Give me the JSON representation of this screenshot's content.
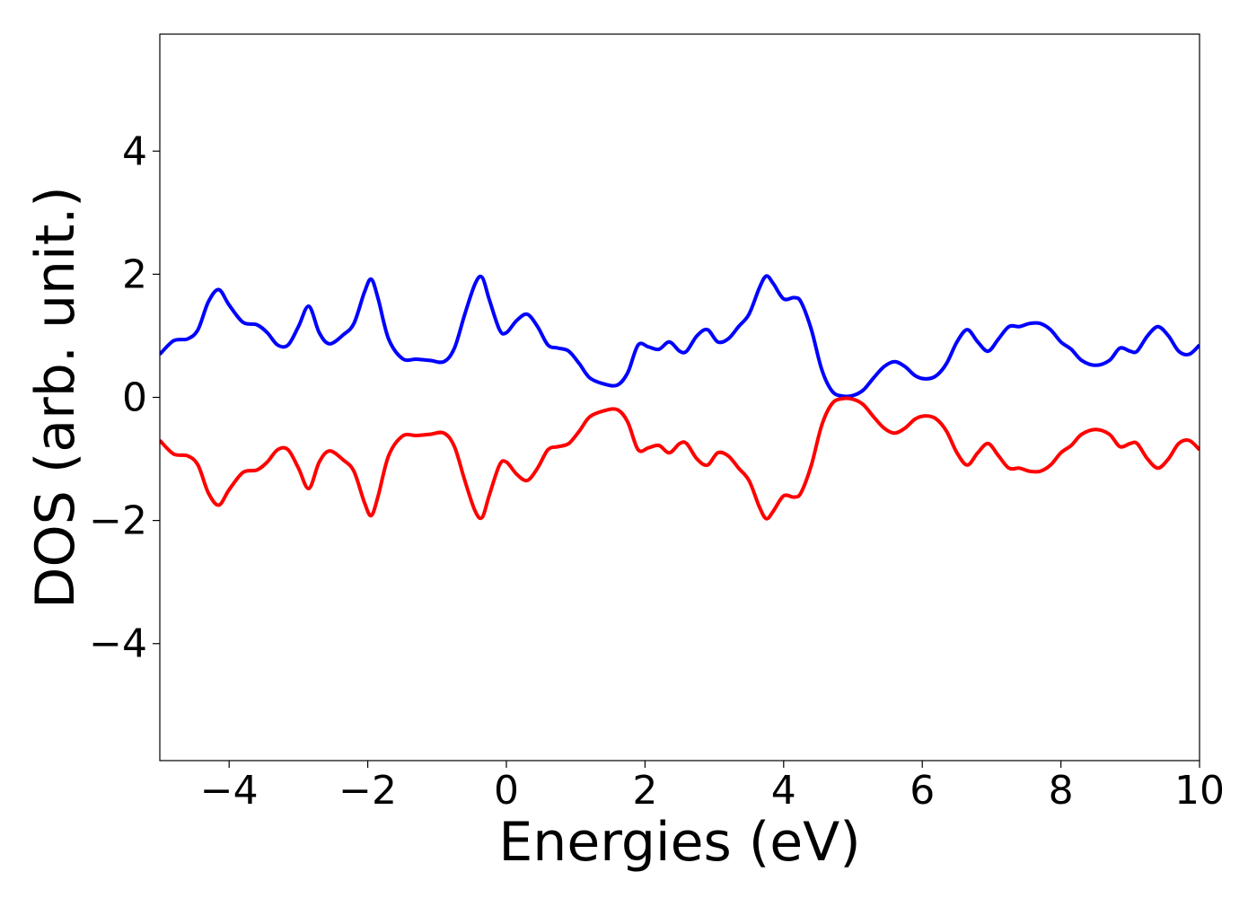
{
  "chart_data": {
    "type": "line",
    "title": "",
    "xlabel": "Energies (eV)",
    "ylabel": "DOS (arb. unit.)",
    "xlim": [
      -5,
      10
    ],
    "ylim": [
      -5.9,
      5.9
    ],
    "grid": false,
    "x_ticks": [
      -4,
      -2,
      0,
      2,
      4,
      6,
      8,
      10
    ],
    "x_tick_labels": [
      "−4",
      "−2",
      "0",
      "2",
      "4",
      "6",
      "8",
      "10"
    ],
    "y_ticks": [
      -4,
      -2,
      0,
      2,
      4
    ],
    "y_tick_labels": [
      "−4",
      "−2",
      "0",
      "2",
      "4"
    ],
    "series": [
      {
        "color": "#0000ff",
        "x": [
          -5.0,
          -4.8,
          -4.6,
          -4.45,
          -4.3,
          -4.15,
          -4.0,
          -3.8,
          -3.6,
          -3.45,
          -3.3,
          -3.15,
          -3.0,
          -2.85,
          -2.7,
          -2.55,
          -2.35,
          -2.2,
          -2.05,
          -1.95,
          -1.85,
          -1.7,
          -1.5,
          -1.3,
          -1.1,
          -0.9,
          -0.75,
          -0.6,
          -0.45,
          -0.35,
          -0.25,
          -0.1,
          0.0,
          0.15,
          0.3,
          0.45,
          0.6,
          0.75,
          0.9,
          1.05,
          1.2,
          1.4,
          1.6,
          1.75,
          1.9,
          2.05,
          2.2,
          2.35,
          2.5,
          2.6,
          2.75,
          2.9,
          3.05,
          3.2,
          3.35,
          3.5,
          3.65,
          3.75,
          3.85,
          4.0,
          4.15,
          4.25,
          4.4,
          4.55,
          4.7,
          4.85,
          5.0,
          5.15,
          5.3,
          5.45,
          5.6,
          5.75,
          5.9,
          6.05,
          6.2,
          6.35,
          6.5,
          6.65,
          6.8,
          6.95,
          7.1,
          7.25,
          7.4,
          7.55,
          7.7,
          7.85,
          8.0,
          8.15,
          8.3,
          8.5,
          8.7,
          8.85,
          9.0,
          9.1,
          9.25,
          9.4,
          9.55,
          9.7,
          9.85,
          10.0
        ],
        "y": [
          0.7,
          0.92,
          0.95,
          1.1,
          1.55,
          1.75,
          1.5,
          1.22,
          1.18,
          1.05,
          0.85,
          0.85,
          1.15,
          1.48,
          1.05,
          0.87,
          1.02,
          1.2,
          1.7,
          1.92,
          1.6,
          0.95,
          0.63,
          0.62,
          0.6,
          0.58,
          0.8,
          1.35,
          1.85,
          1.95,
          1.6,
          1.1,
          1.05,
          1.25,
          1.35,
          1.15,
          0.85,
          0.8,
          0.75,
          0.55,
          0.32,
          0.22,
          0.2,
          0.4,
          0.85,
          0.82,
          0.78,
          0.9,
          0.75,
          0.75,
          1.0,
          1.1,
          0.9,
          0.95,
          1.15,
          1.35,
          1.78,
          1.97,
          1.85,
          1.6,
          1.62,
          1.55,
          1.1,
          0.45,
          0.1,
          0.02,
          0.03,
          0.12,
          0.32,
          0.5,
          0.58,
          0.5,
          0.35,
          0.3,
          0.35,
          0.55,
          0.9,
          1.1,
          0.9,
          0.75,
          0.95,
          1.15,
          1.15,
          1.2,
          1.2,
          1.1,
          0.9,
          0.78,
          0.6,
          0.52,
          0.6,
          0.8,
          0.75,
          0.75,
          1.0,
          1.15,
          1.0,
          0.75,
          0.7,
          0.85
        ]
      },
      {
        "color": "#ff0000",
        "x": [
          -5.0,
          -4.8,
          -4.6,
          -4.45,
          -4.3,
          -4.15,
          -4.0,
          -3.8,
          -3.6,
          -3.45,
          -3.3,
          -3.15,
          -3.0,
          -2.85,
          -2.7,
          -2.55,
          -2.35,
          -2.2,
          -2.05,
          -1.95,
          -1.85,
          -1.7,
          -1.5,
          -1.3,
          -1.1,
          -0.9,
          -0.75,
          -0.6,
          -0.45,
          -0.35,
          -0.25,
          -0.1,
          0.0,
          0.15,
          0.3,
          0.45,
          0.6,
          0.75,
          0.9,
          1.05,
          1.2,
          1.4,
          1.6,
          1.75,
          1.9,
          2.05,
          2.2,
          2.35,
          2.5,
          2.6,
          2.75,
          2.9,
          3.05,
          3.2,
          3.35,
          3.5,
          3.65,
          3.75,
          3.85,
          4.0,
          4.15,
          4.25,
          4.4,
          4.55,
          4.7,
          4.85,
          5.0,
          5.15,
          5.3,
          5.45,
          5.6,
          5.75,
          5.9,
          6.05,
          6.2,
          6.35,
          6.5,
          6.65,
          6.8,
          6.95,
          7.1,
          7.25,
          7.4,
          7.55,
          7.7,
          7.85,
          8.0,
          8.15,
          8.3,
          8.5,
          8.7,
          8.85,
          9.0,
          9.1,
          9.25,
          9.4,
          9.55,
          9.7,
          9.85,
          10.0
        ],
        "y": [
          -0.7,
          -0.92,
          -0.95,
          -1.1,
          -1.55,
          -1.75,
          -1.5,
          -1.22,
          -1.18,
          -1.05,
          -0.85,
          -0.85,
          -1.15,
          -1.48,
          -1.05,
          -0.87,
          -1.02,
          -1.2,
          -1.7,
          -1.92,
          -1.6,
          -0.95,
          -0.63,
          -0.62,
          -0.6,
          -0.58,
          -0.8,
          -1.35,
          -1.85,
          -1.95,
          -1.6,
          -1.1,
          -1.05,
          -1.25,
          -1.35,
          -1.15,
          -0.85,
          -0.8,
          -0.75,
          -0.55,
          -0.32,
          -0.22,
          -0.2,
          -0.4,
          -0.85,
          -0.82,
          -0.78,
          -0.9,
          -0.75,
          -0.75,
          -1.0,
          -1.1,
          -0.9,
          -0.95,
          -1.15,
          -1.35,
          -1.78,
          -1.97,
          -1.85,
          -1.6,
          -1.62,
          -1.55,
          -1.1,
          -0.45,
          -0.1,
          -0.02,
          -0.03,
          -0.12,
          -0.32,
          -0.5,
          -0.58,
          -0.5,
          -0.35,
          -0.3,
          -0.35,
          -0.55,
          -0.9,
          -1.1,
          -0.9,
          -0.75,
          -0.95,
          -1.15,
          -1.15,
          -1.2,
          -1.2,
          -1.1,
          -0.9,
          -0.78,
          -0.6,
          -0.52,
          -0.6,
          -0.8,
          -0.75,
          -0.75,
          -1.0,
          -1.15,
          -1.0,
          -0.75,
          -0.7,
          -0.85
        ]
      }
    ]
  }
}
